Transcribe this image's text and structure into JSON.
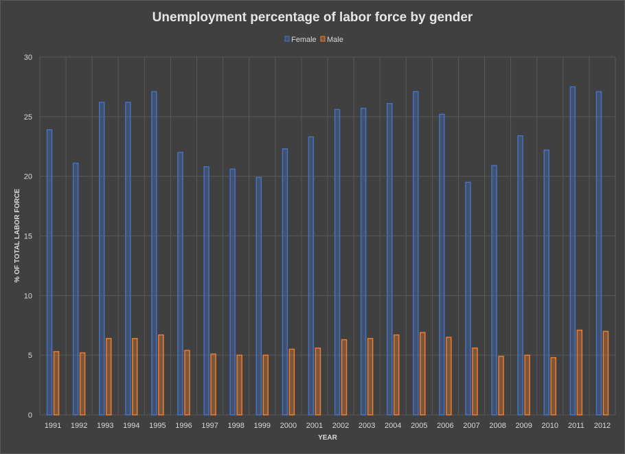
{
  "chart_data": {
    "type": "bar",
    "title": "Unemployment percentage of labor force by gender",
    "xlabel": "YEAR",
    "ylabel": "% OF TOTAL LABOR FORCE",
    "ylim": [
      0,
      30
    ],
    "yticks": [
      0,
      5,
      10,
      15,
      20,
      25,
      30
    ],
    "grid": true,
    "legend_position": "top",
    "categories": [
      "1991",
      "1992",
      "1993",
      "1994",
      "1995",
      "1996",
      "1997",
      "1998",
      "1999",
      "2000",
      "2001",
      "2002",
      "2003",
      "2004",
      "2005",
      "2006",
      "2007",
      "2008",
      "2009",
      "2010",
      "2011",
      "2012"
    ],
    "series": [
      {
        "name": "Female",
        "color": "#4472c4",
        "values": [
          23.9,
          21.1,
          26.2,
          26.2,
          27.1,
          22.0,
          20.8,
          20.6,
          19.9,
          22.3,
          23.3,
          25.6,
          25.7,
          26.1,
          27.1,
          25.2,
          19.5,
          20.9,
          23.4,
          22.2,
          27.5,
          27.1
        ]
      },
      {
        "name": "Male",
        "color": "#ed7d31",
        "values": [
          5.3,
          5.2,
          6.4,
          6.4,
          6.7,
          5.4,
          5.1,
          5.0,
          5.0,
          5.5,
          5.6,
          6.3,
          6.4,
          6.7,
          6.9,
          6.5,
          5.6,
          4.9,
          5.0,
          4.8,
          7.1,
          7.0
        ]
      }
    ]
  }
}
